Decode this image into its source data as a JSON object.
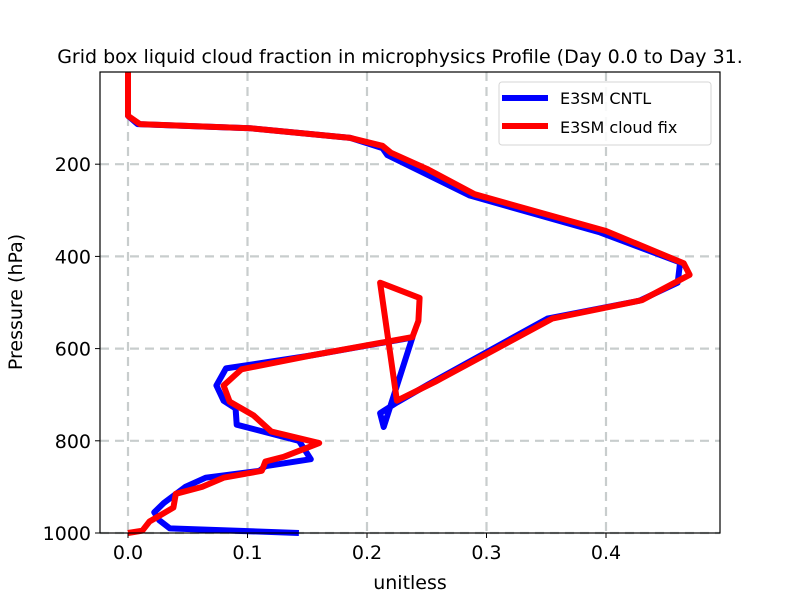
{
  "chart_data": {
    "type": "line",
    "title": "Grid box liquid cloud fraction in microphysics Profile (Day 0.0 to Day 31.",
    "xlabel": "unitless",
    "ylabel": "Pressure (hPa)",
    "xlim": [
      -0.022,
      0.497
    ],
    "ylim": [
      1000,
      0
    ],
    "y_inverted": true,
    "grid": true,
    "grid_style": "dashed",
    "xticks": [
      0.0,
      0.1,
      0.2,
      0.3,
      0.4
    ],
    "xtick_labels": [
      "0.0",
      "0.1",
      "0.2",
      "0.3",
      "0.4"
    ],
    "yticks": [
      200,
      400,
      600,
      800,
      1000
    ],
    "ytick_labels": [
      "200",
      "400",
      "600",
      "800",
      "1000"
    ],
    "legend_position": "upper right",
    "series": [
      {
        "name": "E3SM CNTL",
        "color": "#0000ff",
        "x": [
          0.0,
          0.0,
          0.008,
          0.102,
          0.186,
          0.213,
          0.217,
          0.246,
          0.286,
          0.395,
          0.462,
          0.46,
          0.428,
          0.351,
          0.253,
          0.225,
          0.211,
          0.214,
          0.238,
          0.153,
          0.082,
          0.074,
          0.08,
          0.09,
          0.091,
          0.143,
          0.153,
          0.115,
          0.11,
          0.065,
          0.048,
          0.03,
          0.022,
          0.026,
          0.035,
          0.143
        ],
        "y": [
          0,
          95,
          113,
          122,
          143,
          165,
          180,
          217,
          268,
          348,
          413,
          457,
          496,
          535,
          675,
          717,
          740,
          770,
          576,
          615,
          643,
          680,
          713,
          730,
          765,
          800,
          840,
          855,
          865,
          880,
          900,
          935,
          955,
          972,
          990,
          1000
        ]
      },
      {
        "name": "E3SM cloud fix",
        "color": "#ff0000",
        "x": [
          0.0,
          0.0,
          0.01,
          0.102,
          0.186,
          0.213,
          0.22,
          0.25,
          0.29,
          0.4,
          0.465,
          0.47,
          0.43,
          0.355,
          0.257,
          0.225,
          0.211,
          0.244,
          0.243,
          0.238,
          0.153,
          0.095,
          0.08,
          0.085,
          0.105,
          0.12,
          0.16,
          0.13,
          0.115,
          0.112,
          0.08,
          0.062,
          0.04,
          0.038,
          0.028,
          0.018,
          0.012,
          0.0
        ],
        "y": [
          0,
          95,
          113,
          122,
          143,
          160,
          175,
          210,
          265,
          345,
          415,
          440,
          495,
          535,
          672,
          713,
          457,
          490,
          540,
          575,
          615,
          645,
          680,
          715,
          745,
          780,
          805,
          835,
          845,
          865,
          880,
          900,
          915,
          945,
          960,
          975,
          995,
          1000
        ]
      }
    ]
  }
}
